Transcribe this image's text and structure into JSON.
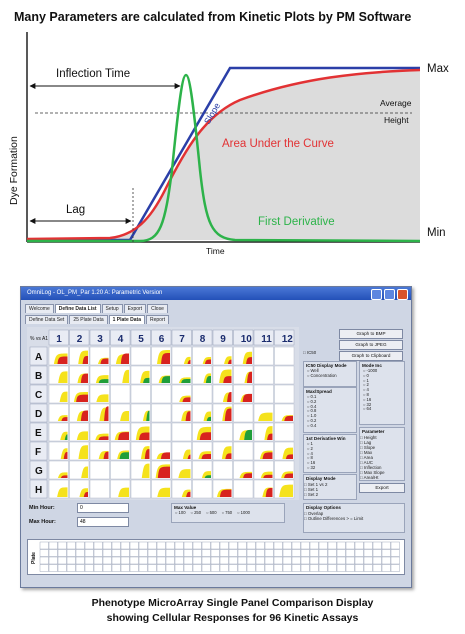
{
  "title": "Many Parameters are calculated from Kinetic Plots by PM Software",
  "diagram": {
    "ylabel": "Dye Formation",
    "xlabel": "Time",
    "max_label": "Max",
    "min_label": "Min",
    "inflection_label": "Inflection Time",
    "slope_label": "Slope",
    "average_label_1": "Average",
    "average_label_2": "Height",
    "area_label": "Area Under the Curve",
    "lag_label": "Lag",
    "derivative_label": "First Derivative",
    "colors": {
      "blue": "#2b3fa8",
      "red": "#e23234",
      "green": "#2db34a",
      "area": "#dcdcdc"
    }
  },
  "window": {
    "title": "OmniLog - OL_PM_Par 1.20 A: Parametric Version",
    "tabs_row1": [
      "Welcome",
      "Define Data List",
      "Setup",
      "Export",
      "Close"
    ],
    "tabs_row2": [
      "Define Data Set",
      "25 Plate Data",
      "1 Plate Data",
      "Report"
    ],
    "corner_label": "% vs A1",
    "columns": [
      "1",
      "2",
      "3",
      "4",
      "5",
      "6",
      "7",
      "8",
      "9",
      "10",
      "11",
      "12"
    ],
    "rows": [
      "A",
      "B",
      "C",
      "D",
      "E",
      "F",
      "G",
      "H"
    ],
    "buttons": [
      "Graph to BMP",
      "Graph to JPEG",
      "Graph to Clipboard",
      "Export"
    ],
    "ic50_label": "IC50",
    "ic50_mode_title": "IC50 Display Mode",
    "ic50_mode_options": [
      "Well",
      "Concentration"
    ],
    "mode_inc_title": "Mode Inc",
    "mode_inc_options": [
      "-1000",
      "0",
      "1",
      "2",
      "4",
      "8",
      "16",
      "32",
      "64"
    ],
    "maxspread_title": "Max/Spread",
    "maxspread_options": [
      "0.1",
      "0.2",
      "0.4",
      "0.8",
      "1.0",
      "0.2",
      "0.4"
    ],
    "deriv_title": "1st Derivative Win",
    "deriv_options": [
      "1",
      "2",
      "4",
      "8",
      "16",
      "32"
    ],
    "param_title": "Parameter",
    "param_options": [
      "Height",
      "Lag",
      "Slope",
      "Max",
      "Area",
      "AUC",
      "Inflection",
      "Max Slope",
      "Area/Ht"
    ],
    "display_mode_title": "Display Mode",
    "display_mode_options": [
      "Set 1 vs 2",
      "Set 1",
      "Set 2"
    ],
    "min_hour_label": "Min Hour:",
    "min_hour_value": "0",
    "max_hour_label": "Max Hour:",
    "max_hour_value": "48",
    "max_value_label": "Max Value",
    "max_value_options": [
      "100",
      "250",
      "500",
      "750",
      "1000"
    ],
    "display_options_title": "Display Options",
    "display_options": [
      "Overlap",
      "Outline Differences > = Limit"
    ],
    "strip_label": "Plate"
  },
  "caption_line1": "Phenotype MicroArray Single Panel Comparison Display",
  "caption_line2": "showing Cellular Responses for 96 Kinetic Assays"
}
